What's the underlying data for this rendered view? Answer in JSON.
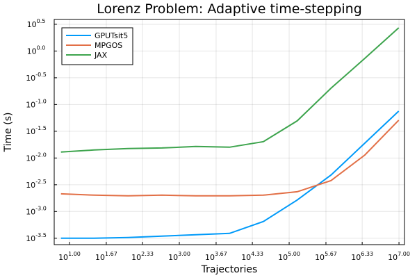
{
  "chart_data": {
    "type": "line",
    "title": "Lorenz Problem: Adaptive time-stepping",
    "x_label": "Trajectories",
    "y_label": "Time (s)",
    "x_log": true,
    "y_log": true,
    "grid": true,
    "legend": "top-left",
    "x": [
      7,
      28,
      117,
      482,
      1990,
      8220,
      34000,
      140000,
      579000,
      2390000,
      9890000
    ],
    "series": [
      {
        "name": "GPUTsit5",
        "color": "#009af9",
        "values": [
          0.000316,
          0.000316,
          0.000326,
          0.000346,
          0.000367,
          0.00039,
          0.000649,
          0.00164,
          0.00481,
          0.019,
          0.0753
        ]
      },
      {
        "name": "MPGOS",
        "color": "#e26f46",
        "values": [
          0.00214,
          0.00202,
          0.00196,
          0.00202,
          0.00196,
          0.00196,
          0.00202,
          0.00234,
          0.00379,
          0.0114,
          0.051
        ]
      },
      {
        "name": "JAX",
        "color": "#3da44d",
        "values": [
          0.0129,
          0.0141,
          0.015,
          0.0154,
          0.0164,
          0.0159,
          0.0202,
          0.0495,
          0.2018,
          0.731,
          2.72
        ]
      }
    ],
    "xlim": [
      5.27,
      12600000
    ],
    "ylim": [
      0.00024,
      3.89
    ],
    "xticks": [
      {
        "value": 10,
        "label": "10^1.00"
      },
      {
        "value": 46.77,
        "label": "10^1.67"
      },
      {
        "value": 213.8,
        "label": "10^2.33"
      },
      {
        "value": 1000,
        "label": "10^3.00"
      },
      {
        "value": 4677,
        "label": "10^3.67"
      },
      {
        "value": 21380,
        "label": "10^4.33"
      },
      {
        "value": 100000,
        "label": "10^5.00"
      },
      {
        "value": 467700,
        "label": "10^5.67"
      },
      {
        "value": 2138000,
        "label": "10^6.33"
      },
      {
        "value": 10000000,
        "label": "10^7.00"
      }
    ],
    "yticks": [
      {
        "value": 0.000316,
        "label": "10^-3.5"
      },
      {
        "value": 0.001,
        "label": "10^-3.0"
      },
      {
        "value": 0.00316,
        "label": "10^-2.5"
      },
      {
        "value": 0.01,
        "label": "10^-2.0"
      },
      {
        "value": 0.0316,
        "label": "10^-1.5"
      },
      {
        "value": 0.1,
        "label": "10^-1.0"
      },
      {
        "value": 0.316,
        "label": "10^-0.5"
      },
      {
        "value": 1,
        "label": "10^0.0"
      },
      {
        "value": 3.16,
        "label": "10^0.5"
      }
    ]
  }
}
